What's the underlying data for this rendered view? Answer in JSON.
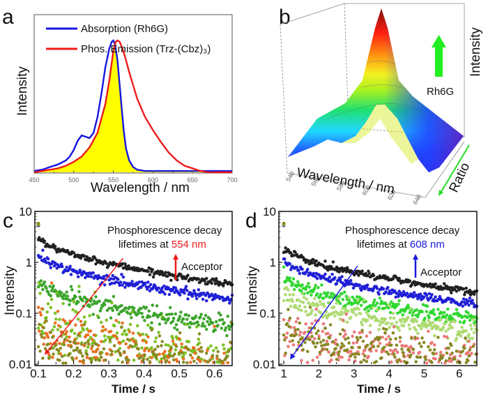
{
  "panels": {
    "a": "a",
    "b": "b",
    "c": "c",
    "d": "d"
  },
  "chart_data": [
    {
      "id": "a",
      "type": "line",
      "title": "",
      "xlabel": "Wavelength / nm",
      "ylabel": "Intensity",
      "xlim": [
        450,
        700
      ],
      "ylim": [
        0,
        1.05
      ],
      "xticks": [
        450,
        500,
        550,
        600,
        650,
        700
      ],
      "legend_position": "top",
      "overlap_fill_color": "#ffff00",
      "series": [
        {
          "name": "Absorption (Rh6G)",
          "color": "#1515e0",
          "x": [
            450,
            460,
            470,
            480,
            490,
            495,
            500,
            505,
            510,
            515,
            520,
            525,
            530,
            535,
            540,
            545,
            548,
            550,
            552,
            555,
            558,
            560,
            563,
            566,
            570,
            575,
            580,
            590,
            600,
            620,
            650,
            700
          ],
          "y": [
            0.01,
            0.02,
            0.04,
            0.06,
            0.09,
            0.12,
            0.17,
            0.24,
            0.28,
            0.27,
            0.26,
            0.3,
            0.42,
            0.6,
            0.8,
            0.94,
            0.99,
            1.0,
            0.97,
            0.86,
            0.66,
            0.52,
            0.32,
            0.18,
            0.09,
            0.04,
            0.02,
            0.01,
            0.01,
            0.01,
            0.01,
            0.01
          ]
        },
        {
          "name": "Phos. Emission (Trz-(Cbz)₃)",
          "color": "#ee1a1a",
          "x": [
            450,
            460,
            470,
            480,
            490,
            500,
            510,
            520,
            530,
            540,
            545,
            550,
            553,
            555,
            558,
            562,
            566,
            570,
            575,
            580,
            590,
            600,
            610,
            620,
            630,
            640,
            650,
            660,
            670,
            680,
            700
          ],
          "y": [
            0.0,
            0.01,
            0.02,
            0.03,
            0.05,
            0.08,
            0.12,
            0.19,
            0.3,
            0.52,
            0.7,
            0.92,
            0.99,
            1.0,
            0.99,
            0.93,
            0.85,
            0.76,
            0.66,
            0.56,
            0.42,
            0.32,
            0.23,
            0.15,
            0.09,
            0.05,
            0.03,
            0.01,
            0.0,
            0.0,
            0.0
          ]
        }
      ]
    },
    {
      "id": "b",
      "type": "surface3d",
      "xlabel": "Wavelength / nm",
      "ylabel": "Ratio",
      "zlabel": "Intensity",
      "xticks": [
        540,
        560,
        580,
        600,
        620,
        640
      ],
      "annotation": "Rh6G",
      "annotation_arrow_color": "#22ee22",
      "colormap": [
        "#5a10c0",
        "#2040ff",
        "#20d0ff",
        "#20e070",
        "#9af020",
        "#f0f020",
        "#ff9a10",
        "#ff2010",
        "#8a1010"
      ]
    },
    {
      "id": "c",
      "type": "scatter",
      "xlabel": "Time / s",
      "ylabel": "Intensity",
      "xlim": [
        0.09,
        0.65
      ],
      "ylim": [
        0.01,
        10
      ],
      "yscale": "log",
      "xticks": [
        0.1,
        0.2,
        0.3,
        0.4,
        0.5,
        0.6
      ],
      "xtick_labels": [
        "0.1",
        "0.2",
        "0.3",
        "0.4",
        "0.5",
        "0.6"
      ],
      "yticks": [
        0.01,
        0.1,
        1,
        10
      ],
      "ytick_labels": [
        "0.01",
        "0.1",
        "1",
        "10"
      ],
      "annotation_line1": "Phosphorescence decay",
      "annotation_line2_prefix": "lifetimes at ",
      "annotation_wavelength": "554 nm",
      "annotation_color": "#ee1a1a",
      "arrow_label": "Acceptor",
      "series": [
        {
          "name": "series-1",
          "color": "#222222",
          "start": 3.4,
          "end": 0.37,
          "noise": 0.03
        },
        {
          "name": "series-2",
          "color": "#2020dd",
          "start": 1.5,
          "end": 0.19,
          "noise": 0.05
        },
        {
          "name": "series-3",
          "color": "#3aa82a",
          "start": 0.45,
          "end": 0.055,
          "noise": 0.09
        },
        {
          "name": "series-4",
          "color": "#7cc420",
          "start": 0.1,
          "end": 0.013,
          "noise": 0.28
        },
        {
          "name": "series-5",
          "color": "#f07020",
          "start": 0.06,
          "end": 0.008,
          "noise": 0.3
        },
        {
          "name": "series-6",
          "color": "#8a8a20",
          "start": 0.03,
          "end": 0.008,
          "noise": 0.25
        }
      ],
      "trend_arrow": {
        "from": [
          0.34,
          1.2
        ],
        "to": [
          0.12,
          0.016
        ],
        "color": "#ee1a1a"
      }
    },
    {
      "id": "d",
      "type": "scatter",
      "xlabel": "Time / s",
      "ylabel": "Intensity",
      "xlim": [
        0.86,
        6.5
      ],
      "ylim": [
        0.01,
        10
      ],
      "yscale": "log",
      "xticks": [
        1,
        2,
        3,
        4,
        5,
        6
      ],
      "xtick_labels": [
        "1",
        "2",
        "3",
        "4",
        "5",
        "6"
      ],
      "yticks": [
        0.01,
        0.1,
        1,
        10
      ],
      "ytick_labels": [
        "0.01",
        "0.1",
        "1",
        "10"
      ],
      "annotation_line1": "Phosphorescence decay",
      "annotation_line2_prefix": "lifetimes at ",
      "annotation_wavelength": "608 nm",
      "annotation_color": "#1a1add",
      "arrow_label": "Acceptor",
      "series": [
        {
          "name": "series-1",
          "color": "#222222",
          "start": 2.1,
          "end": 0.26,
          "noise": 0.035
        },
        {
          "name": "series-2",
          "color": "#2020dd",
          "start": 1.2,
          "end": 0.15,
          "noise": 0.04
        },
        {
          "name": "series-3",
          "color": "#30dd30",
          "start": 0.55,
          "end": 0.075,
          "noise": 0.07
        },
        {
          "name": "series-4",
          "color": "#b0e070",
          "start": 0.25,
          "end": 0.042,
          "noise": 0.1
        },
        {
          "name": "series-5",
          "color": "#f07878",
          "start": 0.055,
          "end": 0.011,
          "noise": 0.25
        },
        {
          "name": "series-6",
          "color": "#8a8a20",
          "start": 0.05,
          "end": 0.011,
          "noise": 0.22
        }
      ],
      "trend_arrow": {
        "from": [
          3.1,
          0.85
        ],
        "to": [
          1.2,
          0.013
        ],
        "color": "#1a1add"
      }
    }
  ]
}
